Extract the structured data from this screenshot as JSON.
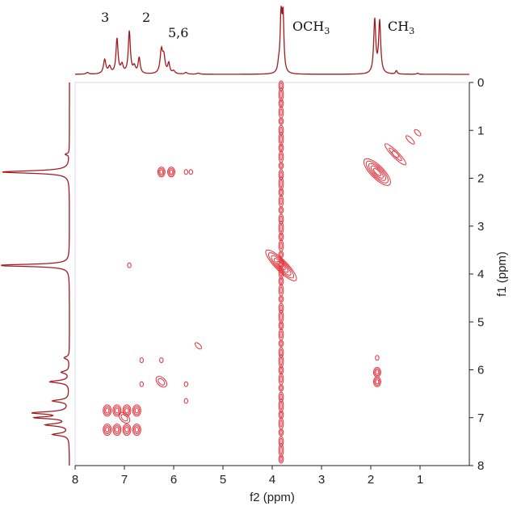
{
  "chart_data": {
    "type": "contour",
    "title": "",
    "xlabel": "f2 (ppm)",
    "ylabel": "f1 (ppm)",
    "xlim": [
      8,
      0
    ],
    "ylim": [
      0,
      8
    ],
    "x_ticks": [
      8,
      7,
      6,
      5,
      4,
      3,
      2,
      1
    ],
    "y_ticks": [
      0,
      1,
      2,
      3,
      4,
      5,
      6,
      7,
      8
    ],
    "grid": false,
    "colors": {
      "contour": "#e2323c",
      "projection": "#a31a1e",
      "axis": "#222222",
      "plot_border": "#d8d8ee"
    },
    "projection_peaks": [
      {
        "label": "3",
        "ppm": 7.4
      },
      {
        "label": "2",
        "ppm": 6.9
      },
      {
        "label": "5,6",
        "ppm": 6.2
      },
      {
        "label": "OCH3",
        "ppm": 3.82
      },
      {
        "label": "CH3",
        "ppm": 1.87
      }
    ],
    "diagonal_peaks_ppm": [
      1.05,
      1.5,
      1.87,
      3.82,
      5.5,
      6.25,
      7.0
    ],
    "cross_peaks": [
      {
        "f2": 6.25,
        "f1": 1.87
      },
      {
        "f2": 6.05,
        "f1": 1.87
      },
      {
        "f2": 5.75,
        "f1": 1.87
      },
      {
        "f2": 5.65,
        "f1": 1.87
      },
      {
        "f2": 6.9,
        "f1": 3.82
      },
      {
        "f2": 1.87,
        "f1": 5.75
      },
      {
        "f2": 1.87,
        "f1": 6.05
      },
      {
        "f2": 1.87,
        "f1": 6.25
      },
      {
        "f2": 6.65,
        "f1": 5.8
      },
      {
        "f2": 6.25,
        "f1": 5.8
      },
      {
        "f2": 6.65,
        "f1": 6.3
      },
      {
        "f2": 5.75,
        "f1": 6.3
      },
      {
        "f2": 5.75,
        "f1": 6.65
      },
      {
        "f2": 7.35,
        "f1": 6.85
      },
      {
        "f2": 7.35,
        "f1": 7.25
      },
      {
        "f2": 7.15,
        "f1": 6.85
      },
      {
        "f2": 7.15,
        "f1": 7.25
      },
      {
        "f2": 6.95,
        "f1": 6.85
      },
      {
        "f2": 6.95,
        "f1": 7.25
      },
      {
        "f2": 6.75,
        "f1": 6.85
      },
      {
        "f2": 6.75,
        "f1": 7.25
      }
    ],
    "solvent_stripe_f2": 3.82
  }
}
